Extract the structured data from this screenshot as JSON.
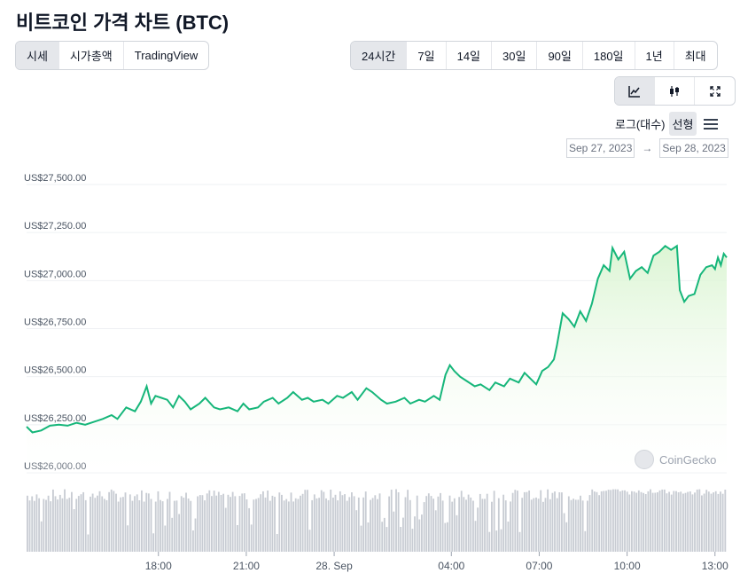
{
  "page_title": "비트코인 가격 차트 (BTC)",
  "metric_tabs": [
    {
      "label": "시세",
      "active": true
    },
    {
      "label": "시가총액",
      "active": false
    },
    {
      "label": "TradingView",
      "active": false
    }
  ],
  "range_tabs": [
    {
      "label": "24시간",
      "active": true
    },
    {
      "label": "7일",
      "active": false
    },
    {
      "label": "14일",
      "active": false
    },
    {
      "label": "30일",
      "active": false
    },
    {
      "label": "90일",
      "active": false
    },
    {
      "label": "180일",
      "active": false
    },
    {
      "label": "1년",
      "active": false
    },
    {
      "label": "최대",
      "active": false
    }
  ],
  "chart_tools": [
    {
      "icon": "line-chart-icon",
      "active": true
    },
    {
      "icon": "candlestick-icon",
      "active": false
    },
    {
      "icon": "expand-icon",
      "active": false
    }
  ],
  "scale_options": {
    "log": "로그(대수)",
    "linear": "선형",
    "active": "linear"
  },
  "date_range": {
    "from": "Sep 27, 2023",
    "arrow": "→",
    "to": "Sep 28, 2023"
  },
  "watermark": "CoinGecko",
  "colors": {
    "line": "#16b67a",
    "fill": "#dcf5d4",
    "volume": "#c8ccd3",
    "grid": "#eef0f3"
  },
  "chart_data": {
    "type": "area",
    "ylim": [
      26000,
      27500
    ],
    "y_ticks": [
      26000,
      26250,
      26500,
      26750,
      27000,
      27250,
      27500
    ],
    "y_tick_labels": [
      "US$26,000.00",
      "US$26,250.00",
      "US$26,500.00",
      "US$26,750.00",
      "US$27,000.00",
      "US$27,250.00",
      "US$27,500.00"
    ],
    "x_ticks": [
      {
        "label": "18:00",
        "t": 4.5
      },
      {
        "label": "21:00",
        "t": 7.5
      },
      {
        "label": "28. Sep",
        "t": 10.5
      },
      {
        "label": "04:00",
        "t": 14.5
      },
      {
        "label": "07:00",
        "t": 17.5
      },
      {
        "label": "10:00",
        "t": 20.5
      },
      {
        "label": "13:00",
        "t": 23.5
      }
    ],
    "x_range": [
      0,
      23.9
    ],
    "price": [
      [
        0.0,
        26240
      ],
      [
        0.2,
        26210
      ],
      [
        0.5,
        26220
      ],
      [
        0.8,
        26245
      ],
      [
        1.1,
        26250
      ],
      [
        1.4,
        26245
      ],
      [
        1.7,
        26260
      ],
      [
        2.0,
        26250
      ],
      [
        2.3,
        26265
      ],
      [
        2.6,
        26280
      ],
      [
        2.9,
        26300
      ],
      [
        3.1,
        26280
      ],
      [
        3.4,
        26340
      ],
      [
        3.7,
        26320
      ],
      [
        3.9,
        26370
      ],
      [
        4.1,
        26450
      ],
      [
        4.25,
        26360
      ],
      [
        4.4,
        26400
      ],
      [
        4.6,
        26390
      ],
      [
        4.8,
        26380
      ],
      [
        5.0,
        26340
      ],
      [
        5.2,
        26400
      ],
      [
        5.4,
        26370
      ],
      [
        5.6,
        26330
      ],
      [
        5.9,
        26360
      ],
      [
        6.1,
        26390
      ],
      [
        6.4,
        26340
      ],
      [
        6.6,
        26330
      ],
      [
        6.9,
        26340
      ],
      [
        7.2,
        26320
      ],
      [
        7.4,
        26360
      ],
      [
        7.6,
        26330
      ],
      [
        7.9,
        26340
      ],
      [
        8.1,
        26370
      ],
      [
        8.4,
        26390
      ],
      [
        8.6,
        26360
      ],
      [
        8.9,
        26390
      ],
      [
        9.1,
        26420
      ],
      [
        9.4,
        26380
      ],
      [
        9.6,
        26390
      ],
      [
        9.8,
        26370
      ],
      [
        10.1,
        26380
      ],
      [
        10.3,
        26360
      ],
      [
        10.6,
        26400
      ],
      [
        10.8,
        26390
      ],
      [
        11.1,
        26420
      ],
      [
        11.3,
        26380
      ],
      [
        11.6,
        26440
      ],
      [
        11.8,
        26420
      ],
      [
        12.1,
        26380
      ],
      [
        12.3,
        26360
      ],
      [
        12.6,
        26370
      ],
      [
        12.9,
        26390
      ],
      [
        13.1,
        26360
      ],
      [
        13.4,
        26380
      ],
      [
        13.6,
        26370
      ],
      [
        13.9,
        26400
      ],
      [
        14.1,
        26380
      ],
      [
        14.3,
        26510
      ],
      [
        14.45,
        26560
      ],
      [
        14.6,
        26530
      ],
      [
        14.8,
        26500
      ],
      [
        15.0,
        26480
      ],
      [
        15.3,
        26450
      ],
      [
        15.5,
        26460
      ],
      [
        15.8,
        26430
      ],
      [
        16.0,
        26470
      ],
      [
        16.3,
        26450
      ],
      [
        16.5,
        26490
      ],
      [
        16.8,
        26470
      ],
      [
        17.0,
        26520
      ],
      [
        17.2,
        26490
      ],
      [
        17.4,
        26460
      ],
      [
        17.6,
        26530
      ],
      [
        17.8,
        26550
      ],
      [
        18.0,
        26590
      ],
      [
        18.1,
        26660
      ],
      [
        18.3,
        26830
      ],
      [
        18.5,
        26800
      ],
      [
        18.7,
        26760
      ],
      [
        18.9,
        26840
      ],
      [
        19.1,
        26790
      ],
      [
        19.3,
        26880
      ],
      [
        19.5,
        27010
      ],
      [
        19.7,
        27080
      ],
      [
        19.9,
        27050
      ],
      [
        20.0,
        27170
      ],
      [
        20.2,
        27110
      ],
      [
        20.4,
        27150
      ],
      [
        20.6,
        27010
      ],
      [
        20.8,
        27050
      ],
      [
        21.0,
        27070
      ],
      [
        21.2,
        27040
      ],
      [
        21.4,
        27130
      ],
      [
        21.6,
        27150
      ],
      [
        21.8,
        27180
      ],
      [
        22.0,
        27160
      ],
      [
        22.2,
        27180
      ],
      [
        22.3,
        26950
      ],
      [
        22.45,
        26890
      ],
      [
        22.6,
        26920
      ],
      [
        22.8,
        26930
      ],
      [
        23.0,
        27030
      ],
      [
        23.2,
        27070
      ],
      [
        23.4,
        27080
      ],
      [
        23.5,
        27060
      ],
      [
        23.6,
        27120
      ],
      [
        23.7,
        27080
      ],
      [
        23.8,
        27140
      ],
      [
        23.9,
        27120
      ]
    ]
  }
}
